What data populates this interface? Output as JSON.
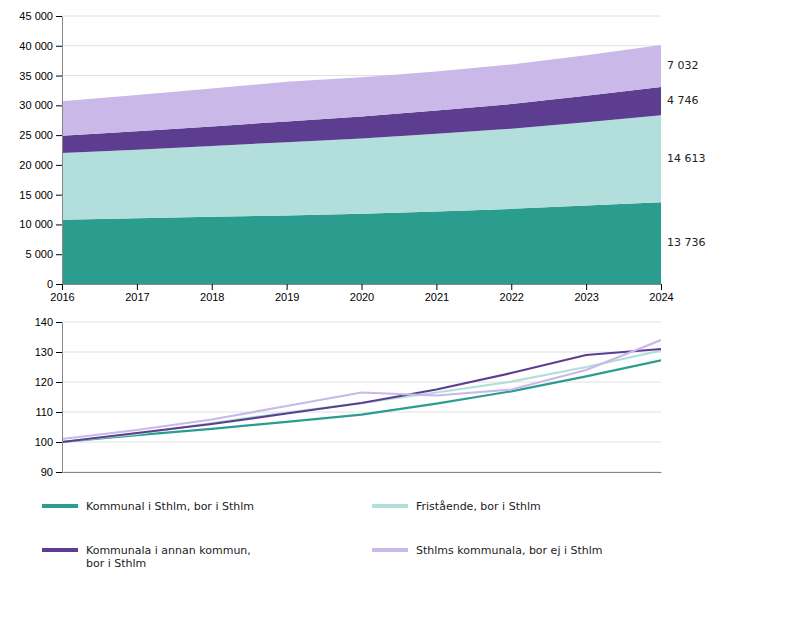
{
  "chart_data": [
    {
      "type": "area",
      "stacked": true,
      "grid": true,
      "x": [
        2016,
        2017,
        2018,
        2019,
        2020,
        2021,
        2022,
        2023,
        2024
      ],
      "xlim": [
        2016,
        2024
      ],
      "xticks": [
        2016,
        2017,
        2018,
        2019,
        2020,
        2021,
        2022,
        2023,
        2024
      ],
      "ylim": [
        0,
        45000
      ],
      "yticks": [
        0,
        {
          "value": 5000,
          "label": "5 000"
        },
        {
          "value": 10000,
          "label": "10 000"
        },
        {
          "value": 15000,
          "label": "15 000"
        },
        {
          "value": 20000,
          "label": "20 000"
        },
        {
          "value": 25000,
          "label": "25 000"
        },
        {
          "value": 30000,
          "label": "30 000"
        },
        {
          "value": 35000,
          "label": "35 000"
        },
        {
          "value": 40000,
          "label": "40 000"
        },
        {
          "value": 45000,
          "label": "45 000"
        }
      ],
      "series": [
        {
          "name": "Kommunal i Sthlm, bor i Sthlm",
          "color": "#2a9d8f",
          "values": [
            10800,
            11050,
            11280,
            11520,
            11780,
            12180,
            12620,
            13170,
            13736
          ]
        },
        {
          "name": "Fristående, bor i Sthlm",
          "color": "#b2dfdb",
          "values": [
            11200,
            11500,
            11900,
            12300,
            12650,
            13050,
            13450,
            14000,
            14613
          ]
        },
        {
          "name": "Kommunala i annan kommun,\nbor i Sthlm",
          "color": "#5c3d8f",
          "values": [
            2900,
            3100,
            3280,
            3480,
            3680,
            3900,
            4150,
            4440,
            4746
          ]
        },
        {
          "name": "Sthlms kommunala, bor ej i Sthlm",
          "color": "#c9b8e8",
          "values": [
            5800,
            6100,
            6350,
            6650,
            6600,
            6550,
            6650,
            6820,
            7032
          ]
        }
      ],
      "annotations": [
        "13 736",
        "14 613",
        "4 746",
        "7 032"
      ]
    },
    {
      "type": "line",
      "grid": true,
      "tick_labels": "y",
      "x": [
        2016,
        2017,
        2018,
        2019,
        2020,
        2021,
        2022,
        2023,
        2024
      ],
      "xlim": [
        2016,
        2024
      ],
      "ylim": [
        90,
        140
      ],
      "yticks": [
        90,
        100,
        110,
        120,
        130,
        140
      ],
      "series": [
        {
          "color": "#2a9d8f",
          "values": [
            100,
            102.3,
            104.4,
            106.7,
            109.1,
            112.8,
            116.9,
            121.9,
            127.2
          ]
        },
        {
          "color": "#b2dfdb",
          "values": [
            100,
            102.7,
            106.3,
            109.8,
            113.0,
            116.5,
            120.1,
            125.0,
            130.5
          ]
        },
        {
          "color": "#5c3d8f",
          "values": [
            100,
            103.0,
            106.0,
            109.5,
            113.0,
            117.5,
            123.0,
            129.0,
            131.0
          ]
        },
        {
          "color": "#c9b8e8",
          "values": [
            101,
            104.0,
            107.5,
            112.0,
            116.5,
            115.5,
            117.5,
            124.0,
            134.0
          ]
        }
      ]
    }
  ]
}
